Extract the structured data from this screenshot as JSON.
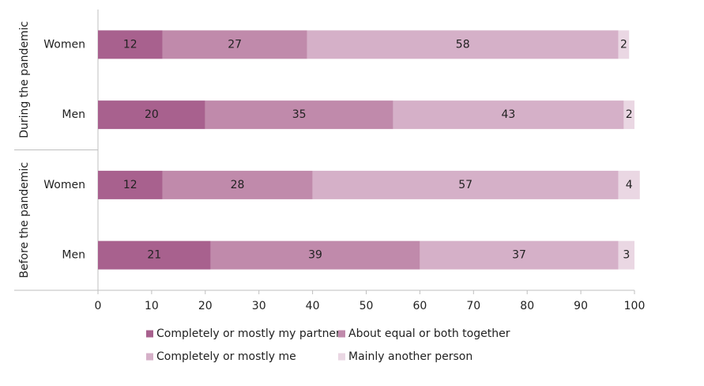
{
  "chart_data": {
    "type": "stacked-bar-horizontal",
    "groups": [
      "During the pandemic",
      "Before the pandemic"
    ],
    "categories": [
      "Women",
      "Men",
      "Women",
      "Men"
    ],
    "series": [
      {
        "name": "Completely or mostly my partner",
        "color": "#a8618e",
        "values": [
          12,
          20,
          12,
          21
        ]
      },
      {
        "name": "About equal or both together",
        "color": "#c08aab",
        "values": [
          27,
          35,
          28,
          39
        ]
      },
      {
        "name": "Completely or mostly me",
        "color": "#d5b0c8",
        "values": [
          58,
          43,
          57,
          37
        ]
      },
      {
        "name": "Mainly another person",
        "color": "#ead7e3",
        "values": [
          2,
          2,
          4,
          3
        ]
      }
    ],
    "xlim": [
      0,
      100
    ],
    "xticks": [
      0,
      10,
      20,
      30,
      40,
      50,
      60,
      70,
      80,
      90,
      100
    ],
    "grid": false
  }
}
